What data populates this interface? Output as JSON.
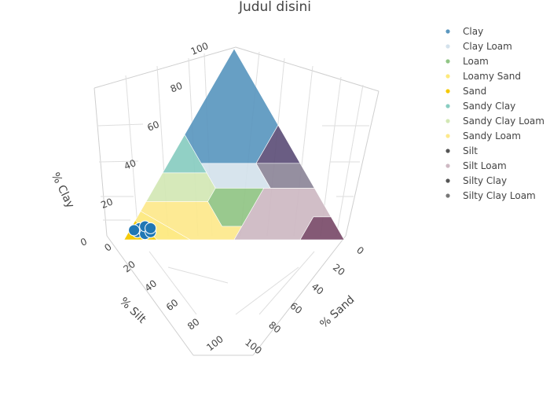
{
  "chart_data": {
    "type": "ternary",
    "title": "Judul disini",
    "axes": {
      "clay": {
        "title": "% Clay",
        "ticks": [
          "0",
          "20",
          "40",
          "60",
          "80",
          "100"
        ]
      },
      "silt": {
        "title": "% Silt",
        "ticks": [
          "0",
          "20",
          "40",
          "60",
          "80",
          "100"
        ]
      },
      "sand": {
        "title": "% Sand",
        "ticks": [
          "0",
          "20",
          "40",
          "60",
          "80",
          "100"
        ]
      }
    },
    "range": [
      0,
      100
    ],
    "grid": true,
    "legend_position": "right",
    "series": [
      {
        "name": "Clay",
        "color": "#5b97bf",
        "polygon": [
          [
            100,
            0,
            0
          ],
          [
            55,
            45,
            0
          ],
          [
            40,
            45,
            15
          ],
          [
            40,
            20,
            40
          ],
          [
            60,
            0,
            40
          ]
        ]
      },
      {
        "name": "Clay Loam",
        "color": "#d4e2ec",
        "polygon": [
          [
            40,
            45,
            15
          ],
          [
            27,
            45,
            28
          ],
          [
            27,
            20,
            53
          ],
          [
            40,
            20,
            40
          ]
        ]
      },
      {
        "name": "Loam",
        "color": "#91c585",
        "polygon": [
          [
            27,
            45,
            28
          ],
          [
            20,
            52,
            28
          ],
          [
            7,
            52,
            41
          ],
          [
            7,
            43,
            50
          ],
          [
            27,
            23,
            50
          ]
        ]
      },
      {
        "name": "Loamy Sand",
        "color": "#fde97c",
        "polygon": [
          [
            15,
            85,
            0
          ],
          [
            10,
            90,
            0
          ],
          [
            0,
            100,
            0
          ],
          [
            0,
            70,
            30
          ]
        ]
      },
      {
        "name": "Sand",
        "color": "#f5c900",
        "polygon": [
          [
            10,
            90,
            0
          ],
          [
            0,
            100,
            0
          ],
          [
            0,
            85,
            15
          ]
        ]
      },
      {
        "name": "Sandy Clay",
        "color": "#88cdc1",
        "polygon": [
          [
            55,
            45,
            0
          ],
          [
            35,
            65,
            0
          ],
          [
            35,
            45,
            20
          ]
        ]
      },
      {
        "name": "Sandy Clay Loam",
        "color": "#d3e8b5",
        "polygon": [
          [
            35,
            65,
            0
          ],
          [
            20,
            80,
            0
          ],
          [
            20,
            52,
            28
          ],
          [
            27,
            45,
            28
          ],
          [
            35,
            45,
            20
          ]
        ]
      },
      {
        "name": "Sandy Loam",
        "color": "#fde98c",
        "polygon": [
          [
            20,
            80,
            0
          ],
          [
            15,
            85,
            0
          ],
          [
            0,
            70,
            30
          ],
          [
            0,
            50,
            50
          ],
          [
            7,
            43,
            50
          ],
          [
            7,
            52,
            41
          ],
          [
            20,
            52,
            28
          ]
        ]
      },
      {
        "name": "Silt",
        "color": "#7a4c6a",
        "polygon": [
          [
            12,
            8,
            80
          ],
          [
            0,
            20,
            80
          ],
          [
            0,
            0,
            100
          ],
          [
            12,
            0,
            88
          ]
        ]
      },
      {
        "name": "Silt Loam",
        "color": "#ceb9c3",
        "polygon": [
          [
            27,
            23,
            50
          ],
          [
            0,
            50,
            50
          ],
          [
            0,
            20,
            80
          ],
          [
            12,
            8,
            80
          ],
          [
            12,
            0,
            88
          ],
          [
            27,
            0,
            73
          ]
        ]
      },
      {
        "name": "Silty Clay",
        "color": "#5e5079",
        "polygon": [
          [
            60,
            0,
            40
          ],
          [
            40,
            20,
            40
          ],
          [
            40,
            0,
            60
          ]
        ]
      },
      {
        "name": "Silty Clay Loam",
        "color": "#8d8699",
        "polygon": [
          [
            40,
            20,
            40
          ],
          [
            27,
            20,
            53
          ],
          [
            27,
            0,
            73
          ],
          [
            40,
            0,
            60
          ]
        ]
      }
    ],
    "legend_marker_colors": [
      "#5b97bf",
      "#d4e2ec",
      "#91c585",
      "#fde97c",
      "#f5c900",
      "#88cdc1",
      "#d3e8b5",
      "#fde98c",
      "#555555",
      "#ceb9c3",
      "#555555",
      "#777777"
    ],
    "points": {
      "color": "#1f77b4",
      "values": [
        [
          4,
          92,
          4
        ],
        [
          5,
          88,
          7
        ],
        [
          6,
          90,
          4
        ],
        [
          3,
          89,
          8
        ],
        [
          5,
          93,
          2
        ],
        [
          7,
          87,
          6
        ],
        [
          4,
          86,
          10
        ],
        [
          6,
          85,
          9
        ]
      ]
    }
  }
}
